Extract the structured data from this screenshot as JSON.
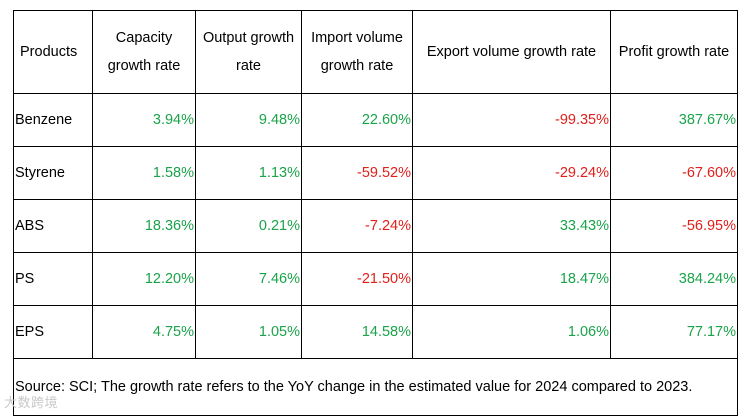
{
  "table": {
    "headers": [
      "Products",
      "Capacity growth rate",
      "Output growth rate",
      "Import volume growth rate",
      "Export volume growth rate",
      "Profit growth rate"
    ],
    "rows": [
      {
        "product": "Benzene",
        "capacity": "3.94%",
        "output": "9.48%",
        "import": "22.60%",
        "export": "-99.35%",
        "profit": "387.67%"
      },
      {
        "product": "Styrene",
        "capacity": "1.58%",
        "output": "1.13%",
        "import": "-59.52%",
        "export": "-29.24%",
        "profit": "-67.60%"
      },
      {
        "product": "ABS",
        "capacity": "18.36%",
        "output": "0.21%",
        "import": "-7.24%",
        "export": "33.43%",
        "profit": "-56.95%"
      },
      {
        "product": "PS",
        "capacity": "12.20%",
        "output": "7.46%",
        "import": "-21.50%",
        "export": "18.47%",
        "profit": "384.24%"
      },
      {
        "product": "EPS",
        "capacity": "4.75%",
        "output": "1.05%",
        "import": "14.58%",
        "export": "1.06%",
        "profit": "77.17%"
      }
    ],
    "note": "Source: SCI; The growth rate refers to the YoY change in the estimated value for 2024 compared to 2023."
  },
  "colors": {
    "positive": "#1aa34a",
    "negative": "#e0201b",
    "border": "#000000"
  },
  "watermark": "大数跨境"
}
